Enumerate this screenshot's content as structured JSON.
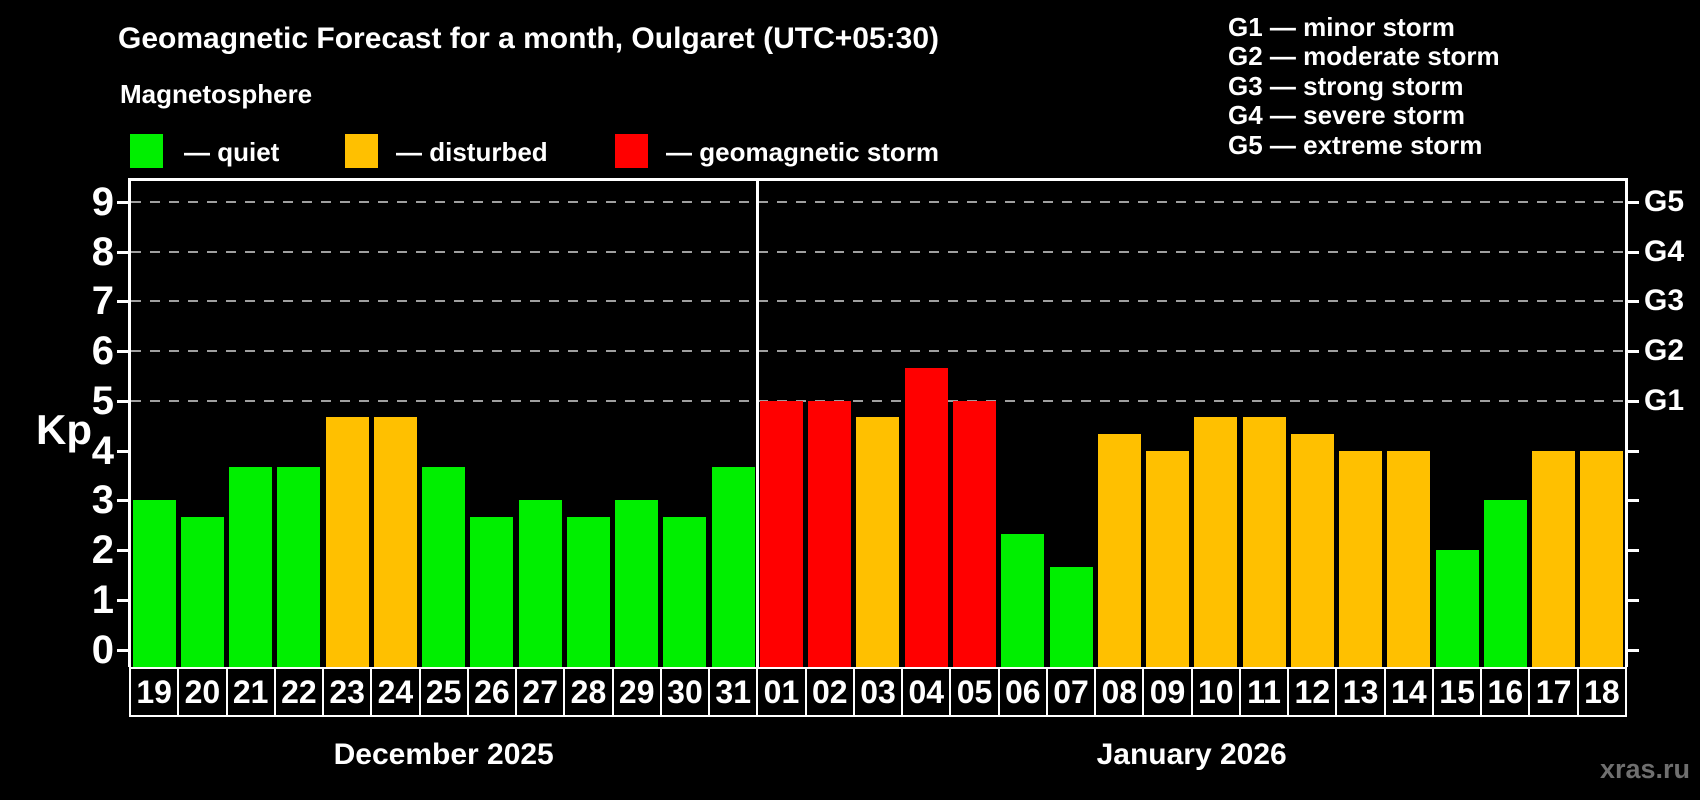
{
  "header": {
    "title": "Geomagnetic Forecast for a month, Oulgaret (UTC+05:30)",
    "subtitle": "Magnetosphere"
  },
  "legend": {
    "items": [
      {
        "key": "quiet",
        "label": "— quiet"
      },
      {
        "key": "disturbed",
        "label": "— disturbed"
      },
      {
        "key": "storm",
        "label": "— geomagnetic storm"
      }
    ]
  },
  "g_legend": {
    "items": [
      "G1 — minor storm",
      "G2 — moderate storm",
      "G3 — strong storm",
      "G4 — severe storm",
      "G5 — extreme storm"
    ]
  },
  "colors": {
    "quiet": "#00ef00",
    "disturbed": "#ffc000",
    "storm": "#ff0000",
    "grid": "#9f9f9f",
    "axis": "#ffffff",
    "watermark": "#6f6f6f"
  },
  "axis": {
    "kp_label": "Kp",
    "left_ticks": [
      "0",
      "1",
      "2",
      "3",
      "4",
      "5",
      "6",
      "7",
      "8",
      "9"
    ],
    "right_labels": [
      {
        "kp": 5,
        "label": "G1"
      },
      {
        "kp": 6,
        "label": "G2"
      },
      {
        "kp": 7,
        "label": "G3"
      },
      {
        "kp": 8,
        "label": "G4"
      },
      {
        "kp": 9,
        "label": "G5"
      }
    ]
  },
  "watermark": "xras.ru",
  "chart_data": {
    "type": "bar",
    "title": "Geomagnetic Forecast for a month, Oulgaret (UTC+05:30)",
    "subtitle": "Magnetosphere",
    "ylabel": "Kp",
    "ylim": [
      0,
      9.4
    ],
    "grid": "horizontal dashed lines at Kp 5..9 (G1..G5 levels)",
    "gridlines_kp": [
      5,
      6,
      7,
      8,
      9
    ],
    "legend_position": "top-left",
    "months": [
      {
        "label": "December 2025",
        "days": [
          "19",
          "20",
          "21",
          "22",
          "23",
          "24",
          "25",
          "26",
          "27",
          "28",
          "29",
          "30",
          "31"
        ],
        "kp": [
          3,
          2.67,
          3.67,
          3.67,
          4.67,
          4.67,
          3.67,
          2.67,
          3,
          2.67,
          3,
          2.67,
          3.67
        ],
        "status": [
          "quiet",
          "quiet",
          "quiet",
          "quiet",
          "disturbed",
          "disturbed",
          "quiet",
          "quiet",
          "quiet",
          "quiet",
          "quiet",
          "quiet",
          "quiet"
        ]
      },
      {
        "label": "January 2026",
        "days": [
          "01",
          "02",
          "03",
          "04",
          "05",
          "06",
          "07",
          "08",
          "09",
          "10",
          "11",
          "12",
          "13",
          "14",
          "15",
          "16",
          "17",
          "18"
        ],
        "kp": [
          5,
          5,
          4.67,
          5.67,
          5,
          2.33,
          1.67,
          4.33,
          4,
          4.67,
          4.67,
          4.33,
          4,
          4,
          2,
          3,
          4,
          4
        ],
        "status": [
          "storm",
          "storm",
          "disturbed",
          "storm",
          "storm",
          "quiet",
          "quiet",
          "disturbed",
          "disturbed",
          "disturbed",
          "disturbed",
          "disturbed",
          "disturbed",
          "disturbed",
          "quiet",
          "quiet",
          "disturbed",
          "disturbed"
        ]
      }
    ]
  }
}
